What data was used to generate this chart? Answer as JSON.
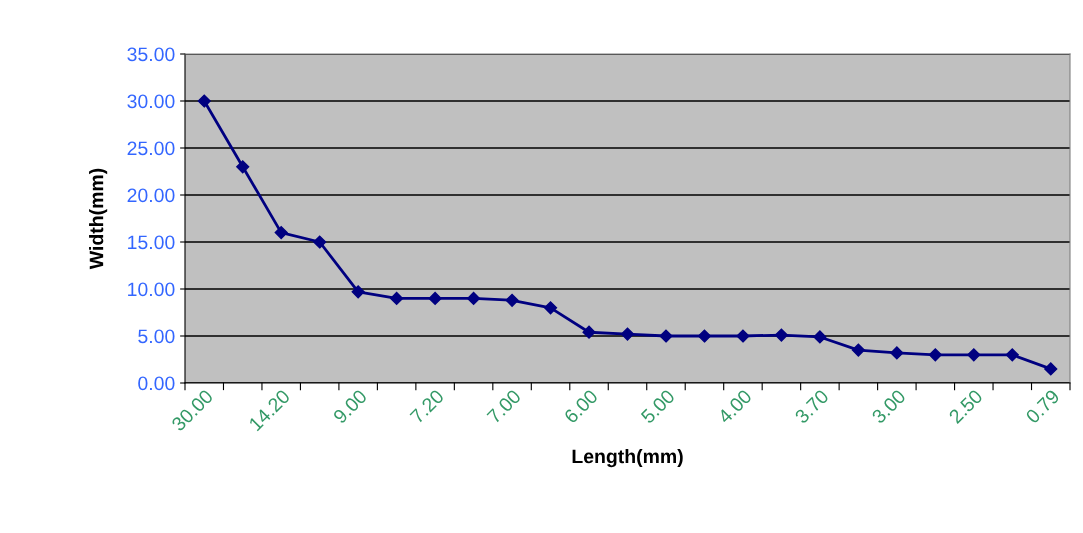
{
  "chart_data": {
    "type": "line",
    "xlabel": "Length(mm)",
    "ylabel": "Width(mm)",
    "categories": [
      "30.00",
      null,
      "14.20",
      null,
      "9.00",
      null,
      "7.20",
      null,
      "7.00",
      null,
      "6.00",
      null,
      "5.00",
      null,
      "4.00",
      null,
      "3.70",
      null,
      "3.00",
      null,
      "2.50",
      null,
      "0.79"
    ],
    "series": [
      {
        "color": "#000080",
        "values": [
          30,
          23,
          16,
          15,
          9.7,
          9,
          9,
          9,
          8.8,
          8,
          5.4,
          5.2,
          5,
          5,
          5,
          5.1,
          4.9,
          3.5,
          3.2,
          3,
          3,
          3,
          1.5
        ]
      }
    ],
    "ylim": [
      0,
      35
    ],
    "yticks": [
      {
        "value": 0,
        "label": "0.00"
      },
      {
        "value": 5,
        "label": "5.00"
      },
      {
        "value": 10,
        "label": "10.00"
      },
      {
        "value": 15,
        "label": "15.00"
      },
      {
        "value": 20,
        "label": "20.00"
      },
      {
        "value": 25,
        "label": "25.00"
      },
      {
        "value": 30,
        "label": "30.00"
      },
      {
        "value": 35,
        "label": "35.00"
      }
    ],
    "grid": "y",
    "marker": "diamond",
    "line_style": "solid"
  }
}
